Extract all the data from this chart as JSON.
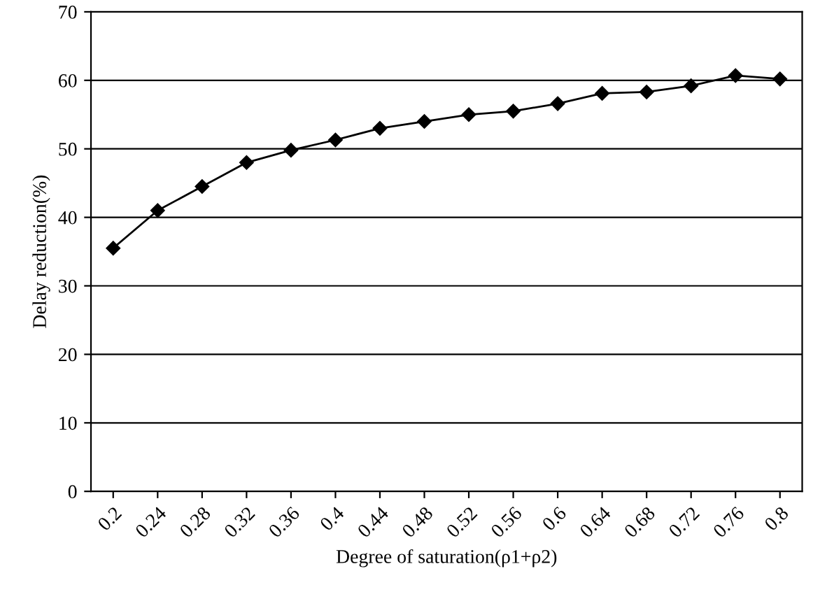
{
  "chart_data": {
    "type": "line",
    "xlabel": "Degree of saturation(ρ1+ρ2)",
    "ylabel": "Delay reduction(%)",
    "categories": [
      "0.2",
      "0.24",
      "0.28",
      "0.32",
      "0.36",
      "0.4",
      "0.44",
      "0.48",
      "0.52",
      "0.56",
      "0.6",
      "0.64",
      "0.68",
      "0.72",
      "0.76",
      "0.8"
    ],
    "series": [
      {
        "color": "#000000",
        "values": [
          35.5,
          41,
          44.5,
          48,
          49.8,
          51.3,
          53,
          54,
          55,
          55.5,
          56.6,
          58.1,
          58.3,
          59.2,
          60.7,
          60.2
        ]
      }
    ],
    "ylim": [
      0,
      70
    ],
    "yticks": [
      0,
      10,
      20,
      30,
      40,
      50,
      60,
      70
    ],
    "grid": "y",
    "marker": "diamond",
    "line_style": "solid"
  }
}
